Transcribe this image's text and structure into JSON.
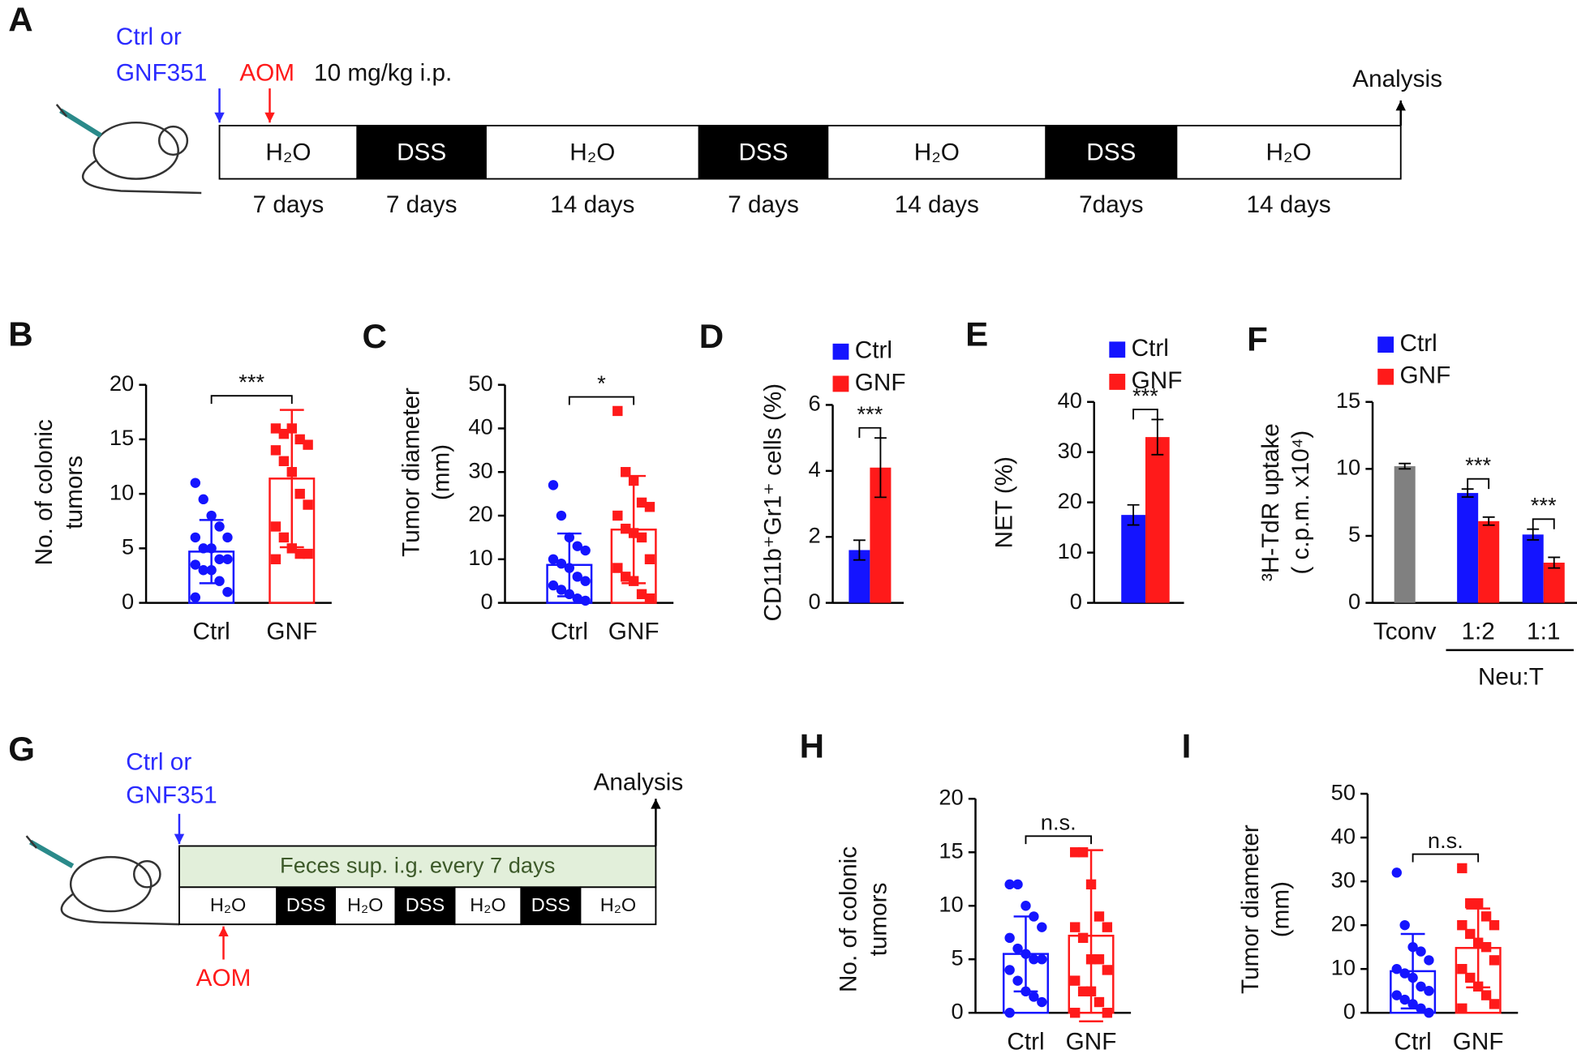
{
  "panel_a": {
    "label": "A",
    "treatment": [
      "Ctrl or",
      "GNF351"
    ],
    "aom": "AOM",
    "dose": "10 mg/kg i.p.",
    "endpoint": "Analysis",
    "segments": [
      {
        "label": "H₂O",
        "days": "7 days",
        "fill": "#ffffff"
      },
      {
        "label": "DSS",
        "days": "7 days",
        "fill": "#000000"
      },
      {
        "label": "H₂O",
        "days": "14 days",
        "fill": "#ffffff"
      },
      {
        "label": "DSS",
        "days": "7 days",
        "fill": "#000000"
      },
      {
        "label": "H₂O",
        "days": "14 days",
        "fill": "#ffffff"
      },
      {
        "label": "DSS",
        "days": "7days",
        "fill": "#000000"
      },
      {
        "label": "H₂O",
        "days": "14 days",
        "fill": "#ffffff"
      }
    ]
  },
  "panel_g": {
    "label": "G",
    "treatment": [
      "Ctrl or",
      "GNF351"
    ],
    "aom": "AOM",
    "endpoint": "Analysis",
    "feces": "Feces sup. i.g. every 7 days",
    "segments": [
      {
        "label": "H₂O",
        "fill": "#ffffff"
      },
      {
        "label": "DSS",
        "fill": "#000000"
      },
      {
        "label": "H₂O",
        "fill": "#ffffff"
      },
      {
        "label": "DSS",
        "fill": "#000000"
      },
      {
        "label": "H₂O",
        "fill": "#ffffff"
      },
      {
        "label": "DSS",
        "fill": "#000000"
      },
      {
        "label": "H₂O",
        "fill": "#ffffff"
      }
    ]
  },
  "chart_data": [
    {
      "type": "dotbar",
      "label": "B",
      "ylabel": [
        "No. of colonic",
        "tumors"
      ],
      "categories": [
        "Ctrl",
        "GNF"
      ],
      "colors": [
        "#1414ff",
        "#ff1a1a"
      ],
      "markers": [
        "circle",
        "square"
      ],
      "values": [
        4.7,
        11.4
      ],
      "errors": [
        2.9,
        6.3
      ],
      "points": [
        [
          11,
          9.5,
          8,
          7,
          6,
          6,
          5,
          5,
          4,
          4,
          3.5,
          3,
          3,
          2,
          1,
          0.5
        ],
        [
          16,
          15.5,
          16,
          15,
          14.5,
          14,
          13,
          12,
          10,
          9,
          7,
          6,
          5,
          4.5,
          4.5,
          4
        ]
      ],
      "ylim": [
        0,
        20
      ],
      "yticks": [
        0,
        5,
        10,
        15,
        20
      ],
      "significance": "***"
    },
    {
      "type": "dotbar",
      "label": "C",
      "ylabel": [
        "Tumor  diameter",
        "(mm)"
      ],
      "categories": [
        "Ctrl",
        "GNF"
      ],
      "colors": [
        "#1414ff",
        "#ff1a1a"
      ],
      "markers": [
        "circle",
        "square"
      ],
      "values": [
        8.7,
        16.8
      ],
      "errors": [
        7.2,
        12.3
      ],
      "points": [
        [
          27,
          20,
          15,
          13,
          12,
          10,
          9,
          8,
          6,
          5,
          4,
          3,
          2,
          1,
          0.5
        ],
        [
          44,
          30,
          28,
          23,
          22,
          20,
          17,
          16,
          15,
          10,
          8,
          6,
          5,
          2,
          1
        ]
      ],
      "ylim": [
        0,
        50
      ],
      "yticks": [
        0,
        10,
        20,
        30,
        40,
        50
      ],
      "significance": "*"
    },
    {
      "type": "bar",
      "label": "D",
      "ylabel": [
        "CD11b⁺Gr1⁺ cells (%)"
      ],
      "series": [
        {
          "name": "Ctrl",
          "color": "#1414ff",
          "values": [
            1.6
          ],
          "errors": [
            0.3
          ]
        },
        {
          "name": "GNF",
          "color": "#ff1a1a",
          "values": [
            4.1
          ],
          "errors": [
            0.9
          ]
        }
      ],
      "ylim": [
        0,
        6
      ],
      "yticks": [
        0,
        2,
        4,
        6
      ],
      "significance": [
        "***"
      ]
    },
    {
      "type": "bar",
      "label": "E",
      "ylabel": [
        "NET (%)"
      ],
      "series": [
        {
          "name": "Ctrl",
          "color": "#1414ff",
          "values": [
            17.5
          ],
          "errors": [
            2
          ]
        },
        {
          "name": "GNF",
          "color": "#ff1a1a",
          "values": [
            33
          ],
          "errors": [
            3.5
          ]
        }
      ],
      "ylim": [
        0,
        40
      ],
      "yticks": [
        0,
        10,
        20,
        30,
        40
      ],
      "significance": [
        "***"
      ]
    },
    {
      "type": "bar",
      "label": "F",
      "ylabel": [
        "³H-TdR uptake",
        "( c.p.m. x10⁴)"
      ],
      "categories": [
        "Tconv",
        "1:2",
        "1:1"
      ],
      "group_label": "Neu:T",
      "series": [
        {
          "name": "Ctrl",
          "color": "#1414ff",
          "values": [
            null,
            8.2,
            5.1
          ],
          "errors": [
            null,
            0.3,
            0.4
          ]
        },
        {
          "name": "GNF",
          "color": "#ff1a1a",
          "values": [
            null,
            6.1,
            3.0
          ],
          "errors": [
            null,
            0.3,
            0.4
          ]
        },
        {
          "color": "#808080",
          "values": [
            10.2,
            null,
            null
          ],
          "errors": [
            0.2,
            null,
            null
          ]
        }
      ],
      "ylim": [
        0,
        15
      ],
      "yticks": [
        0,
        5,
        10,
        15
      ],
      "significance": [
        null,
        "***",
        "***"
      ]
    },
    {
      "type": "dotbar",
      "label": "H",
      "ylabel": [
        "No. of colonic",
        "tumors"
      ],
      "categories": [
        "Ctrl",
        "GNF"
      ],
      "colors": [
        "#1414ff",
        "#ff1a1a"
      ],
      "markers": [
        "circle",
        "square"
      ],
      "values": [
        5.5,
        7.2
      ],
      "errors": [
        3.5,
        8
      ],
      "points": [
        [
          12,
          12,
          10,
          9,
          8,
          7,
          6,
          5.5,
          5,
          5,
          4,
          3,
          2,
          1.5,
          1,
          0
        ],
        [
          15,
          15,
          12,
          9,
          8,
          8,
          7,
          5,
          5,
          4,
          3,
          2,
          2,
          1,
          0,
          0
        ]
      ],
      "ylim": [
        0,
        20
      ],
      "yticks": [
        0,
        5,
        10,
        15,
        20
      ],
      "significance": "n.s."
    },
    {
      "type": "dotbar",
      "label": "I",
      "ylabel": [
        "Tumor  diameter",
        "(mm)"
      ],
      "categories": [
        "Ctrl",
        "GNF"
      ],
      "colors": [
        "#1414ff",
        "#ff1a1a"
      ],
      "markers": [
        "circle",
        "square"
      ],
      "values": [
        9.5,
        14.8
      ],
      "errors": [
        8.5,
        9
      ],
      "points": [
        [
          32,
          20,
          15,
          14,
          12,
          10,
          9,
          8,
          6,
          5,
          4,
          3,
          2,
          1,
          0
        ],
        [
          33,
          25,
          25,
          22,
          20,
          20,
          18,
          16,
          15,
          12,
          10,
          8,
          6,
          4,
          2,
          1
        ]
      ],
      "ylim": [
        0,
        50
      ],
      "yticks": [
        0,
        10,
        20,
        30,
        40,
        50
      ],
      "significance": "n.s."
    }
  ]
}
